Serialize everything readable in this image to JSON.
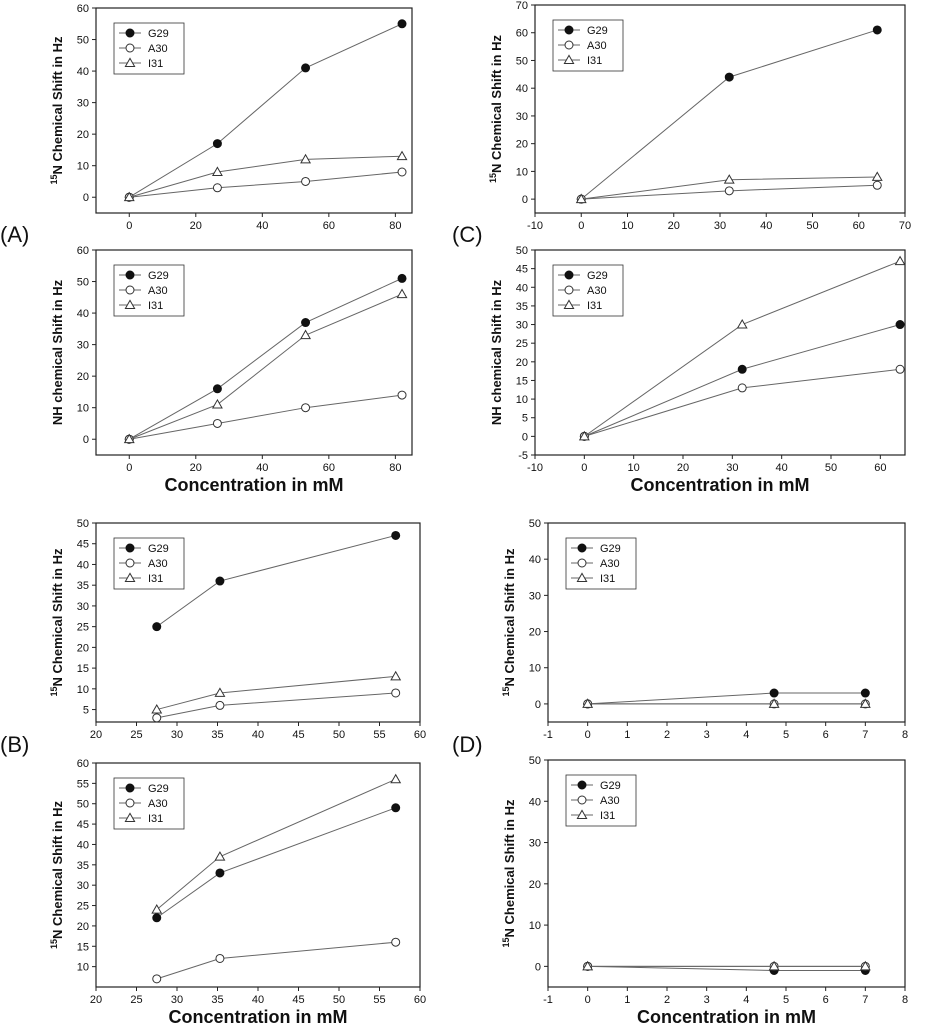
{
  "panel_labels": [
    "(A)",
    "(B)",
    "(C)",
    "(D)"
  ],
  "chart_data": [
    {
      "id": "a-top",
      "type": "line",
      "ylabel": "15N Chemical Shift in Hz",
      "xlabel": "",
      "xlim": [
        -10,
        85
      ],
      "ylim": [
        -5,
        60
      ],
      "xticks": [
        0,
        20,
        40,
        60,
        80
      ],
      "yticks": [
        0,
        10,
        20,
        30,
        40,
        50,
        60
      ],
      "legend": "top-left",
      "series": [
        {
          "name": "G29",
          "marker": "circle-filled",
          "x": [
            0,
            26.5,
            53,
            82
          ],
          "y": [
            0,
            17,
            41,
            55
          ]
        },
        {
          "name": "A30",
          "marker": "circle-open",
          "x": [
            0,
            26.5,
            53,
            82
          ],
          "y": [
            0,
            3,
            5,
            8
          ]
        },
        {
          "name": "I31",
          "marker": "triangle-open",
          "x": [
            0,
            26.5,
            53,
            82
          ],
          "y": [
            0,
            8,
            12,
            13
          ]
        }
      ]
    },
    {
      "id": "a-bottom",
      "type": "line",
      "ylabel": "NH chemical Shift in Hz",
      "xlabel": "Concentration in mM",
      "xlim": [
        -10,
        85
      ],
      "ylim": [
        -5,
        60
      ],
      "xticks": [
        0,
        20,
        40,
        60,
        80
      ],
      "yticks": [
        0,
        10,
        20,
        30,
        40,
        50,
        60
      ],
      "legend": "top-left",
      "series": [
        {
          "name": "G29",
          "marker": "circle-filled",
          "x": [
            0,
            26.5,
            53,
            82
          ],
          "y": [
            0,
            16,
            37,
            51
          ]
        },
        {
          "name": "A30",
          "marker": "circle-open",
          "x": [
            0,
            26.5,
            53,
            82
          ],
          "y": [
            0,
            5,
            10,
            14
          ]
        },
        {
          "name": "I31",
          "marker": "triangle-open",
          "x": [
            0,
            26.5,
            53,
            82
          ],
          "y": [
            0,
            11,
            33,
            46
          ]
        }
      ]
    },
    {
      "id": "b-top",
      "type": "line",
      "ylabel": "15N Chemical Shift in Hz",
      "xlabel": "",
      "xlim": [
        20,
        60
      ],
      "ylim": [
        2,
        50
      ],
      "xticks": [
        20,
        25,
        30,
        35,
        40,
        45,
        50,
        55,
        60
      ],
      "yticks": [
        5,
        10,
        15,
        20,
        25,
        30,
        35,
        40,
        45,
        50
      ],
      "legend": "top-left",
      "series": [
        {
          "name": "G29",
          "marker": "circle-filled",
          "x": [
            27.5,
            35.3,
            57
          ],
          "y": [
            25,
            36,
            47
          ]
        },
        {
          "name": "A30",
          "marker": "circle-open",
          "x": [
            27.5,
            35.3,
            57
          ],
          "y": [
            3,
            6,
            9
          ]
        },
        {
          "name": "I31",
          "marker": "triangle-open",
          "x": [
            27.5,
            35.3,
            57
          ],
          "y": [
            5,
            9,
            13
          ]
        }
      ]
    },
    {
      "id": "b-bottom",
      "type": "line",
      "ylabel": "15N Chemical Shift in Hz",
      "xlabel": "Concentration in mM",
      "xlim": [
        20,
        60
      ],
      "ylim": [
        5,
        60
      ],
      "xticks": [
        20,
        25,
        30,
        35,
        40,
        45,
        50,
        55,
        60
      ],
      "yticks": [
        10,
        15,
        20,
        25,
        30,
        35,
        40,
        45,
        50,
        55,
        60
      ],
      "legend": "top-left",
      "series": [
        {
          "name": "G29",
          "marker": "circle-filled",
          "x": [
            27.5,
            35.3,
            57
          ],
          "y": [
            22,
            33,
            49
          ]
        },
        {
          "name": "A30",
          "marker": "circle-open",
          "x": [
            27.5,
            35.3,
            57
          ],
          "y": [
            7,
            12,
            16
          ]
        },
        {
          "name": "I31",
          "marker": "triangle-open",
          "x": [
            27.5,
            35.3,
            57
          ],
          "y": [
            24,
            37,
            56
          ]
        }
      ]
    },
    {
      "id": "c-top",
      "type": "line",
      "ylabel": "15N Chemical Shift in Hz",
      "xlabel": "",
      "xlim": [
        -10,
        70
      ],
      "ylim": [
        -5,
        70
      ],
      "xticks": [
        -10,
        0,
        10,
        20,
        30,
        40,
        50,
        60,
        70
      ],
      "yticks": [
        0,
        10,
        20,
        30,
        40,
        50,
        60,
        70
      ],
      "legend": "top-left",
      "series": [
        {
          "name": "G29",
          "marker": "circle-filled",
          "x": [
            0,
            32,
            64
          ],
          "y": [
            0,
            44,
            61
          ]
        },
        {
          "name": "A30",
          "marker": "circle-open",
          "x": [
            0,
            32,
            64
          ],
          "y": [
            0,
            3,
            5
          ]
        },
        {
          "name": "I31",
          "marker": "triangle-open",
          "x": [
            0,
            32,
            64
          ],
          "y": [
            0,
            7,
            8
          ]
        }
      ]
    },
    {
      "id": "c-bottom",
      "type": "line",
      "ylabel": "NH chemical Shift in Hz",
      "xlabel": "Concentration in mM",
      "xlim": [
        -10,
        65
      ],
      "ylim": [
        -5,
        50
      ],
      "xticks": [
        -10,
        0,
        10,
        20,
        30,
        40,
        50,
        60
      ],
      "yticks": [
        -5,
        0,
        5,
        10,
        15,
        20,
        25,
        30,
        35,
        40,
        45,
        50
      ],
      "legend": "top-left",
      "series": [
        {
          "name": "G29",
          "marker": "circle-filled",
          "x": [
            0,
            32,
            64
          ],
          "y": [
            0,
            18,
            30
          ]
        },
        {
          "name": "A30",
          "marker": "circle-open",
          "x": [
            0,
            32,
            64
          ],
          "y": [
            0,
            13,
            18
          ]
        },
        {
          "name": "I31",
          "marker": "triangle-open",
          "x": [
            0,
            32,
            64
          ],
          "y": [
            0,
            30,
            47
          ]
        }
      ]
    },
    {
      "id": "d-top",
      "type": "line",
      "ylabel": "15N Chemical Shift in Hz",
      "xlabel": "",
      "xlim": [
        -1,
        8
      ],
      "ylim": [
        -5,
        50
      ],
      "xticks": [
        -1,
        0,
        1,
        2,
        3,
        4,
        5,
        6,
        7,
        8
      ],
      "yticks": [
        0,
        10,
        20,
        30,
        40,
        50
      ],
      "legend": "top-left",
      "series": [
        {
          "name": "G29",
          "marker": "circle-filled",
          "x": [
            0,
            4.7,
            7
          ],
          "y": [
            0,
            3,
            3
          ]
        },
        {
          "name": "A30",
          "marker": "circle-open",
          "x": [
            0,
            4.7,
            7
          ],
          "y": [
            0,
            0,
            0
          ]
        },
        {
          "name": "I31",
          "marker": "triangle-open",
          "x": [
            0,
            4.7,
            7
          ],
          "y": [
            0,
            0,
            0
          ]
        }
      ]
    },
    {
      "id": "d-bottom",
      "type": "line",
      "ylabel": "15N Chemical Shift in Hz",
      "xlabel": "Concentration in mM",
      "xlim": [
        -1,
        8
      ],
      "ylim": [
        -5,
        50
      ],
      "xticks": [
        -1,
        0,
        1,
        2,
        3,
        4,
        5,
        6,
        7,
        8
      ],
      "yticks": [
        0,
        10,
        20,
        30,
        40,
        50
      ],
      "legend": "top-left",
      "series": [
        {
          "name": "G29",
          "marker": "circle-filled",
          "x": [
            0,
            4.7,
            7
          ],
          "y": [
            0,
            -1,
            -1
          ]
        },
        {
          "name": "A30",
          "marker": "circle-open",
          "x": [
            0,
            4.7,
            7
          ],
          "y": [
            0,
            0,
            0
          ]
        },
        {
          "name": "I31",
          "marker": "triangle-open",
          "x": [
            0,
            4.7,
            7
          ],
          "y": [
            0,
            0,
            0
          ]
        }
      ]
    }
  ]
}
